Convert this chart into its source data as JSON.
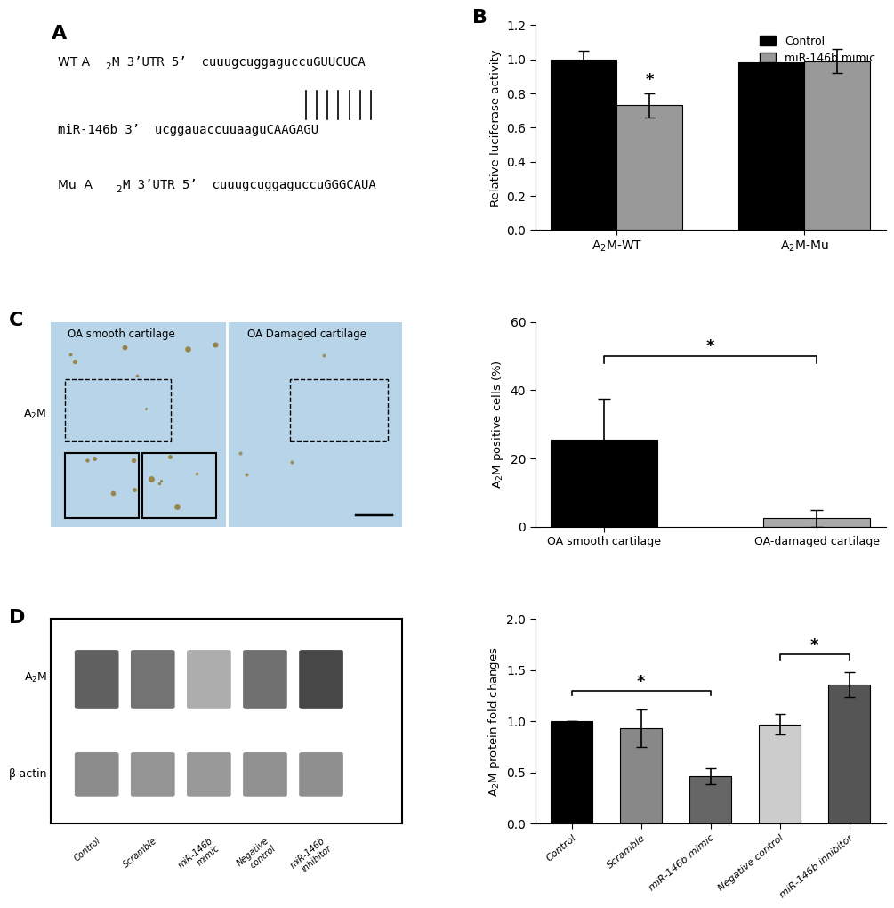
{
  "panel_B": {
    "groups": [
      "A₂M-WT",
      "A₂M-Mu"
    ],
    "control_values": [
      1.0,
      0.98
    ],
    "mimic_values": [
      0.73,
      0.99
    ],
    "control_errors": [
      0.05,
      0.03
    ],
    "mimic_errors": [
      0.07,
      0.07
    ],
    "ylabel": "Relative luciferase activity",
    "ylim": [
      0,
      1.2
    ],
    "yticks": [
      0.0,
      0.2,
      0.4,
      0.6,
      0.8,
      1.0,
      1.2
    ],
    "legend_labels": [
      "Control",
      "miR-146b mimic"
    ],
    "colors": [
      "#000000",
      "#999999"
    ],
    "title_label": "B"
  },
  "panel_C_chart": {
    "categories": [
      "OA smooth cartilage",
      "OA-damaged cartilage"
    ],
    "values": [
      25.5,
      2.5
    ],
    "errors": [
      12.0,
      2.5
    ],
    "colors": [
      "#000000",
      "#aaaaaa"
    ],
    "ylim": [
      0,
      60
    ],
    "yticks": [
      0,
      20,
      40,
      60
    ],
    "title_label": "C"
  },
  "panel_D_chart": {
    "categories": [
      "Control",
      "Scramble",
      "miR-146b mimic",
      "Negative control",
      "miR-146b inhibitor"
    ],
    "values": [
      1.0,
      0.93,
      0.46,
      0.97,
      1.36
    ],
    "errors": [
      0.0,
      0.18,
      0.08,
      0.1,
      0.12
    ],
    "colors": [
      "#000000",
      "#888888",
      "#666666",
      "#cccccc",
      "#555555"
    ],
    "ylim": [
      0,
      2.0
    ],
    "yticks": [
      0.0,
      0.5,
      1.0,
      1.5,
      2.0
    ],
    "title_label": "D"
  }
}
